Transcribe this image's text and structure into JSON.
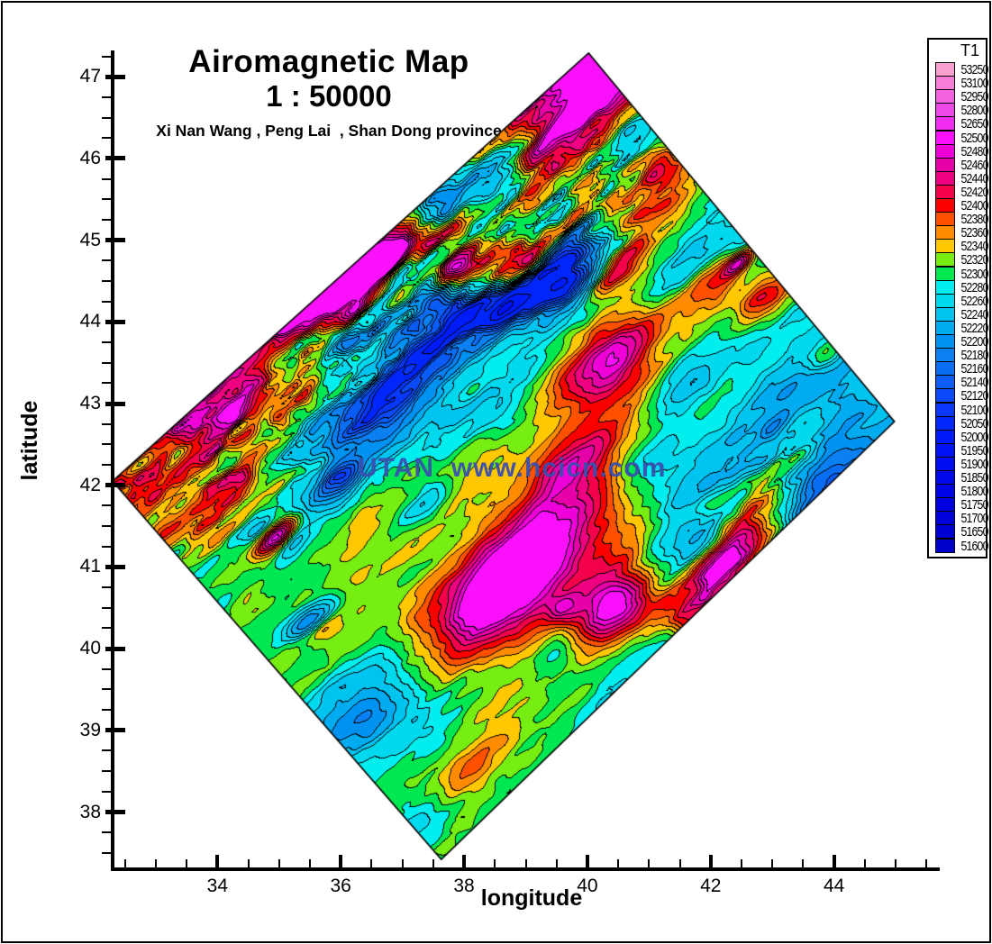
{
  "title": {
    "line1": "Airomagnetic Map",
    "line2": "1 : 50000",
    "subtitle": "Xi Nan Wang , Peng Lai  , Shan Dong province"
  },
  "watermark": {
    "text": "UTAN  www.hcicn.com",
    "color": "#3A50AE"
  },
  "axes": {
    "x": {
      "label": "longitude",
      "major_ticks": [
        34,
        36,
        38,
        40,
        42,
        44
      ],
      "minor_step": 0.5
    },
    "y": {
      "label": "latitude",
      "major_ticks": [
        38,
        39,
        40,
        41,
        42,
        43,
        44,
        45,
        46,
        47
      ],
      "minor_step": 0.25
    }
  },
  "legend": {
    "title": "T1"
  },
  "chart_data": {
    "type": "heatmap",
    "subtype": "filled_contour_map",
    "title": "Airomagnetic Map 1 : 50000",
    "xlabel": "longitude",
    "ylabel": "latitude",
    "value_label": "T1",
    "xlim": [
      32.3,
      45.7
    ],
    "ylim": [
      37.3,
      47.3
    ],
    "grid": false,
    "legend_position": "right",
    "boundary_lonlat": [
      [
        32.3,
        42.05
      ],
      [
        40.02,
        47.29
      ],
      [
        44.98,
        42.78
      ],
      [
        37.63,
        37.42
      ]
    ],
    "contour_levels": [
      51600,
      51650,
      51700,
      51750,
      51800,
      51850,
      51900,
      51950,
      52000,
      52050,
      52100,
      52120,
      52140,
      52160,
      52180,
      52200,
      52220,
      52240,
      52260,
      52280,
      52300,
      52320,
      52340,
      52360,
      52380,
      52400,
      52420,
      52440,
      52460,
      52480,
      52500,
      52650,
      52800,
      52950,
      53100,
      53250
    ],
    "palette": [
      "#0000CD",
      "#0000D4",
      "#0000DA",
      "#0000E0",
      "#0003E6",
      "#0008EC",
      "#000DF2",
      "#0013F6",
      "#001BFA",
      "#0026FC",
      "#0938FA",
      "#0A4AF8",
      "#0A5CF6",
      "#0A6EF4",
      "#0A80F2",
      "#0092F0",
      "#00ABF0",
      "#00C4F0",
      "#00D8EE",
      "#00EEEE",
      "#00E851",
      "#76EE12",
      "#FFC800",
      "#FF8C00",
      "#FF5000",
      "#FA0000",
      "#F5004B",
      "#EE0080",
      "#E600A8",
      "#F000D8",
      "#FA10FA",
      "#F02DF0",
      "#EE49E6",
      "#F262E0",
      "#F77ED8",
      "#F79FD0"
    ],
    "anomaly_format": "[lon, lat, amplitude_nT, sigma_along_px, sigma_across_px, screen_angle_deg]",
    "anomalies": [
      [
        39.35,
        46.45,
        150,
        130,
        38,
        -42
      ],
      [
        39.95,
        47.1,
        130,
        55,
        35,
        -42
      ],
      [
        38.88,
        46.6,
        90,
        18,
        10,
        -42
      ],
      [
        38.75,
        44.62,
        300,
        30,
        15,
        -40
      ],
      [
        37.85,
        44.72,
        170,
        28,
        12,
        -42
      ],
      [
        36.05,
        44.32,
        200,
        40,
        16,
        -40
      ],
      [
        35.2,
        44.18,
        180,
        30,
        12,
        -42
      ],
      [
        35.45,
        44.95,
        130,
        35,
        14,
        -42
      ],
      [
        34.55,
        43.0,
        150,
        55,
        18,
        -40
      ],
      [
        36.75,
        44.85,
        140,
        35,
        14,
        -40
      ],
      [
        40.55,
        44.7,
        150,
        30,
        13,
        -42
      ],
      [
        41.15,
        45.9,
        140,
        20,
        9,
        -40
      ],
      [
        40.3,
        43.5,
        170,
        48,
        26,
        -40
      ],
      [
        42.05,
        44.5,
        120,
        30,
        16,
        -40
      ],
      [
        42.9,
        44.3,
        130,
        28,
        14,
        -40
      ],
      [
        42.45,
        44.72,
        150,
        14,
        6,
        -42
      ],
      [
        43.9,
        43.6,
        90,
        18,
        9,
        -40
      ],
      [
        41.0,
        45.5,
        80,
        45,
        20,
        -38
      ],
      [
        38.9,
        40.95,
        230,
        110,
        42,
        -44
      ],
      [
        38.7,
        40.8,
        90,
        45,
        20,
        -44
      ],
      [
        40.45,
        40.55,
        240,
        42,
        22,
        -40
      ],
      [
        42.35,
        41.1,
        250,
        55,
        16,
        -44
      ],
      [
        42.7,
        41.9,
        140,
        45,
        16,
        -45
      ],
      [
        34.85,
        44.3,
        150,
        28,
        11,
        -40
      ],
      [
        34.25,
        43.5,
        50,
        45,
        18,
        -40
      ],
      [
        33.3,
        42.95,
        40,
        40,
        18,
        -40
      ],
      [
        32.8,
        42.25,
        35,
        65,
        35,
        -38
      ],
      [
        33.85,
        41.8,
        30,
        25,
        12,
        -40
      ],
      [
        34.95,
        41.38,
        210,
        20,
        8,
        -42
      ],
      [
        35.7,
        40.28,
        55,
        15,
        8,
        -42
      ],
      [
        34.15,
        40.9,
        40,
        20,
        10,
        -40
      ],
      [
        34.45,
        40.63,
        35,
        15,
        8,
        -40
      ],
      [
        39.6,
        40.5,
        70,
        14,
        10,
        -40
      ],
      [
        39.85,
        42.35,
        90,
        50,
        20,
        -42
      ],
      [
        38.15,
        38.55,
        80,
        40,
        18,
        -40
      ],
      [
        37.6,
        43.7,
        -130,
        150,
        52,
        -40
      ],
      [
        38.1,
        44.3,
        -130,
        48,
        20,
        -42
      ],
      [
        38.78,
        44.22,
        -150,
        30,
        13,
        -42
      ],
      [
        37.15,
        43.75,
        -110,
        36,
        16,
        -42
      ],
      [
        36.45,
        42.9,
        -95,
        42,
        18,
        -42
      ],
      [
        35.35,
        43.55,
        -120,
        40,
        14,
        -42
      ],
      [
        36.0,
        42.1,
        -140,
        20,
        9,
        -42
      ],
      [
        37.9,
        45.65,
        -160,
        55,
        22,
        -42
      ],
      [
        38.85,
        45.85,
        -120,
        35,
        14,
        -40
      ],
      [
        39.55,
        44.5,
        -150,
        40,
        16,
        -42
      ],
      [
        43.5,
        42.4,
        -105,
        135,
        78,
        -33
      ],
      [
        43.85,
        41.95,
        -55,
        50,
        28,
        -33
      ],
      [
        41.5,
        43.35,
        -50,
        30,
        18,
        -40
      ],
      [
        42.1,
        44.9,
        -70,
        50,
        20,
        -40
      ],
      [
        36.3,
        39.3,
        -70,
        95,
        30,
        -38
      ],
      [
        36.55,
        39.15,
        -40,
        45,
        20,
        -38
      ],
      [
        35.52,
        40.35,
        -150,
        25,
        10,
        -40
      ],
      [
        34.7,
        41.5,
        -60,
        18,
        8,
        -42
      ],
      [
        35.2,
        41.25,
        -60,
        18,
        8,
        -42
      ],
      [
        39.55,
        40.0,
        -60,
        25,
        12,
        -40
      ],
      [
        37.35,
        41.75,
        -60,
        30,
        14,
        -40
      ],
      [
        40.9,
        42.25,
        -50,
        40,
        18,
        -40
      ],
      [
        37.27,
        37.88,
        -30,
        25,
        12,
        -40
      ]
    ],
    "field_model": {
      "base": 52310,
      "tilt": [
        16,
        -14
      ],
      "noise": {
        "seed": 7,
        "angle_deg": -42,
        "floor": 0.55,
        "octaves": [
          [
            150,
            42,
            48,
            13.7,
            71.3
          ],
          [
            76,
            21,
            32,
            41.1,
            9.2
          ],
          [
            37,
            11,
            23,
            77.7,
            33.3
          ],
          [
            18,
            6.5,
            13,
            5.5,
            59.9
          ]
        ],
        "belt1": {
          "line": [
            [
              33.2,
              42.3
            ],
            [
              39.7,
              45.6
            ]
          ],
          "halfwidth": 95,
          "strength": 2.45
        },
        "belt2": {
          "line": [
            [
              41.8,
              40.5
            ],
            [
              43.1,
              42.35
            ]
          ],
          "halfwidth": 42,
          "strength": 1.3
        }
      }
    }
  }
}
